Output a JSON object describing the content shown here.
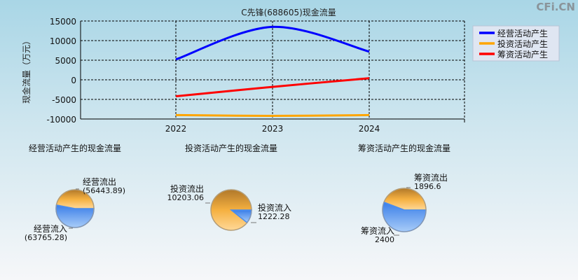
{
  "watermark": "CFi.CN",
  "chart_data": [
    {
      "type": "line",
      "title": "C先锋(688605)现金流量",
      "ylabel": "现金流量（万元）",
      "xlabel": "",
      "categories": [
        "2022",
        "2023",
        "2024"
      ],
      "ylim": [
        -10000,
        15000
      ],
      "yticks": [
        "15000",
        "10000",
        "5000",
        "0",
        "-5000",
        "-10000"
      ],
      "grid": true,
      "legend": "right",
      "series": [
        {
          "name": "经营活动产生",
          "color": "#0000ff",
          "values": [
            5200,
            13500,
            7200
          ]
        },
        {
          "name": "投资活动产生",
          "color": "#ffa500",
          "values": [
            -9000,
            -9200,
            -9000
          ]
        },
        {
          "name": "筹资活动产生",
          "color": "#ff0000",
          "values": [
            -4200,
            -1800,
            400
          ]
        }
      ]
    },
    {
      "type": "pie",
      "title": "经营活动产生的现金流量",
      "slices": [
        {
          "label": "经营流出",
          "value_label": "(56443.89)",
          "value": 56443.89,
          "color": "#f0a830"
        },
        {
          "label": "经营流入",
          "value_label": "(63765.28)",
          "value": 63765.28,
          "color": "#4a8ef0"
        }
      ]
    },
    {
      "type": "pie",
      "title": "投资活动产生的现金流量",
      "slices": [
        {
          "label": "投资流出",
          "value_label": "10203.06",
          "value": 10203.06,
          "color": "#f0a830"
        },
        {
          "label": "投资流入",
          "value_label": "1222.28",
          "value": 1222.28,
          "color": "#4a8ef0"
        }
      ]
    },
    {
      "type": "pie",
      "title": "筹资活动产生的现金流量",
      "slices": [
        {
          "label": "筹资流出",
          "value_label": "1896.6",
          "value": 1896.6,
          "color": "#f0a830"
        },
        {
          "label": "筹资流入",
          "value_label": "2400",
          "value": 2400,
          "color": "#4a8ef0"
        }
      ]
    }
  ]
}
